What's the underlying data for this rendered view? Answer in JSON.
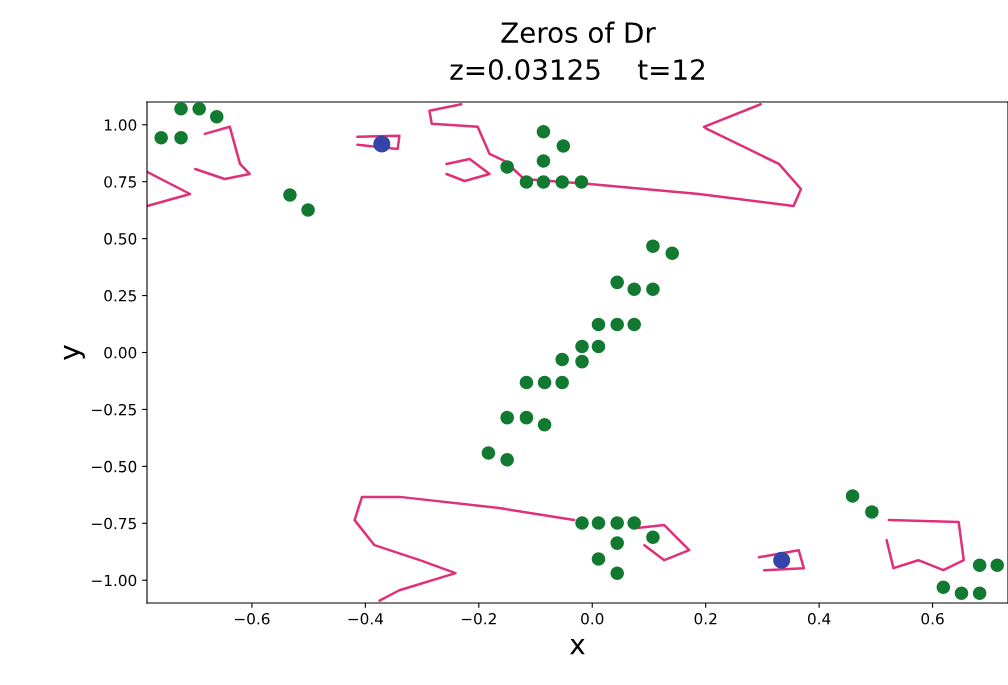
{
  "chart_data": {
    "type": "scatter",
    "title": "Zeros of Dr",
    "subtitle": "z=0.03125    t=12",
    "xlabel": "x",
    "ylabel": "y",
    "xlim": [
      -0.785,
      0.733
    ],
    "ylim": [
      -1.1,
      1.1
    ],
    "xticks": [
      {
        "value": -0.6,
        "label": "−0.6"
      },
      {
        "value": -0.4,
        "label": "−0.4"
      },
      {
        "value": -0.2,
        "label": "−0.2"
      },
      {
        "value": 0.0,
        "label": "0.0"
      },
      0.2,
      0.4,
      0.6
    ],
    "yticks": [
      {
        "value": -1.0,
        "label": "−1.00"
      },
      {
        "value": -0.75,
        "label": "−0.75"
      },
      {
        "value": -0.5,
        "label": "−0.50"
      },
      {
        "value": -0.25,
        "label": "−0.25"
      },
      {
        "value": 0.0,
        "label": "0.00"
      },
      {
        "value": 0.25,
        "label": "0.25"
      },
      {
        "value": 0.5,
        "label": "0.50"
      },
      {
        "value": 0.75,
        "label": "0.75"
      },
      {
        "value": 1.0,
        "label": "1.00"
      }
    ],
    "grid": false,
    "legend": false,
    "marker": "circle",
    "series": [
      {
        "type": "line",
        "marker": "none",
        "color": "#e0307a",
        "x": [
          -0.231,
          -0.287,
          -0.283,
          -0.202,
          -0.181,
          -0.155,
          -0.12,
          -0.005,
          0.188,
          0.355,
          0.368,
          0.329,
          0.202,
          0.197,
          0.297
        ],
        "values": [
          1.09,
          1.062,
          1.004,
          0.991,
          0.872,
          0.841,
          0.762,
          0.74,
          0.696,
          0.643,
          0.718,
          0.828,
          0.982,
          0.991,
          1.09
        ]
      },
      {
        "type": "line",
        "marker": "none",
        "color": "#e0307a",
        "x": [
          -0.032,
          -0.164,
          -0.34,
          -0.406,
          -0.419,
          -0.384,
          -0.304,
          -0.241,
          -0.34,
          -0.375
        ],
        "values": [
          -0.736,
          -0.683,
          -0.634,
          -0.634,
          -0.736,
          -0.846,
          -0.912,
          -0.969,
          -1.044,
          -1.09
        ]
      },
      {
        "type": "line",
        "marker": "none",
        "color": "#e0307a",
        "x": [
          -0.785,
          -0.709,
          -0.785
        ],
        "values": [
          0.793,
          0.696,
          0.643
        ]
      },
      {
        "type": "line",
        "marker": "none",
        "color": "#e0307a",
        "x": [
          -0.414,
          -0.34,
          -0.343,
          -0.414
        ],
        "values": [
          0.947,
          0.952,
          0.894,
          0.912
        ]
      },
      {
        "type": "line",
        "marker": "none",
        "color": "#e0307a",
        "x": [
          -0.683,
          -0.639,
          -0.621,
          -0.604,
          -0.648,
          -0.7
        ],
        "values": [
          0.96,
          0.991,
          0.828,
          0.784,
          0.762,
          0.806
        ]
      },
      {
        "type": "line",
        "marker": "none",
        "color": "#e0307a",
        "x": [
          -0.257,
          -0.216,
          -0.181,
          -0.225,
          -0.257
        ],
        "values": [
          0.828,
          0.85,
          0.784,
          0.753,
          0.784
        ]
      },
      {
        "type": "line",
        "marker": "none",
        "color": "#e0307a",
        "x": [
          0.294,
          0.364,
          0.373,
          0.303
        ],
        "values": [
          -0.899,
          -0.868,
          -0.947,
          -0.956
        ]
      },
      {
        "type": "line",
        "marker": "none",
        "color": "#e0307a",
        "x": [
          0.523,
          0.646,
          0.655,
          0.619,
          0.575,
          0.531,
          0.519
        ],
        "values": [
          -0.736,
          -0.744,
          -0.912,
          -0.956,
          -0.912,
          -0.947,
          -0.824
        ]
      },
      {
        "type": "line",
        "marker": "none",
        "color": "#e0307a",
        "x": [
          0.079,
          0.127,
          0.171,
          0.127,
          0.092
        ],
        "values": [
          -0.771,
          -0.758,
          -0.868,
          -0.912,
          -0.846
        ]
      },
      {
        "color": "#127a30",
        "x": [
          -0.76,
          -0.725,
          -0.725,
          -0.693,
          -0.662,
          -0.533,
          -0.501,
          -0.086,
          -0.051,
          -0.086,
          -0.15,
          -0.116,
          -0.086,
          -0.053,
          -0.019,
          0.107,
          0.141,
          0.044,
          0.074,
          0.107,
          0.011,
          0.044,
          0.074,
          -0.018,
          0.011,
          -0.053,
          -0.018,
          -0.116,
          -0.084,
          -0.053,
          -0.15,
          -0.116,
          -0.084,
          -0.183,
          -0.15,
          -0.018,
          0.011,
          0.044,
          0.074,
          0.107,
          0.044,
          0.011,
          0.044,
          0.459,
          0.493,
          0.683,
          0.714,
          0.619,
          0.651,
          0.683
        ],
        "values": [
          0.943,
          0.943,
          1.07,
          1.07,
          1.035,
          0.692,
          0.626,
          0.969,
          0.907,
          0.841,
          0.815,
          0.749,
          0.749,
          0.749,
          0.749,
          0.467,
          0.436,
          0.308,
          0.278,
          0.278,
          0.123,
          0.123,
          0.123,
          0.026,
          0.026,
          -0.031,
          -0.04,
          -0.132,
          -0.132,
          -0.132,
          -0.286,
          -0.286,
          -0.317,
          -0.441,
          -0.471,
          -0.749,
          -0.749,
          -0.749,
          -0.749,
          -0.811,
          -0.837,
          -0.907,
          -0.969,
          -0.63,
          -0.7,
          -0.934,
          -0.934,
          -1.031,
          -1.057,
          -1.057
        ]
      },
      {
        "color": "#3345a8",
        "x": [
          -0.371,
          0.334
        ],
        "values": [
          0.916,
          -0.912
        ]
      }
    ]
  }
}
